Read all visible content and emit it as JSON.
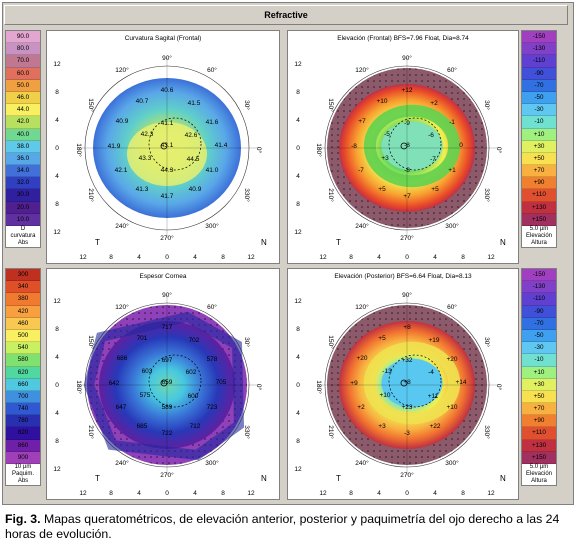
{
  "window_title": "Refractive",
  "caption": {
    "label": "Fig. 3.",
    "text": " Mapas queratométricos, de elevación anterior, posterior y paquimetría del ojo derecho a las 24 horas de evolución."
  },
  "axis": {
    "deg90": "90°",
    "deg120": "120°",
    "deg60": "60°",
    "deg150": "150°",
    "deg30": "30°",
    "deg180": "180°",
    "deg0": "0°",
    "deg210": "210°",
    "deg330": "330°",
    "deg240": "240°",
    "deg300": "300°",
    "deg270": "270°",
    "x_ticks": [
      "12",
      "8",
      "4",
      "0",
      "4",
      "8",
      "12"
    ],
    "y_ticks": [
      "12",
      "8",
      "4",
      "0",
      "4",
      "8",
      "12"
    ],
    "T": "T",
    "N": "N"
  },
  "maps": {
    "sagittal": {
      "title": "Curvatura Sagital (Frontal)",
      "labels": [
        "40.6",
        "40.7",
        "41.5",
        "40.9",
        "42.3",
        "41.1",
        "41.6",
        "42.6",
        "41.9",
        "43.1",
        "41.4",
        "43.3",
        "44.5",
        "42.1",
        "44.3",
        "41.0",
        "41.3",
        "40.9",
        "41.7"
      ]
    },
    "elev_front": {
      "title": "Elevación (Frontal)  BFS=7.96 Float, Dia=8.74",
      "labels": [
        "+12",
        "+10",
        "+2",
        "+7",
        "-5",
        "-9",
        "-1",
        "-6",
        "-8",
        "-8",
        "0",
        "+3",
        "-7",
        "-7",
        "-8",
        "+1",
        "+5",
        "+5",
        "+7"
      ]
    },
    "pachy": {
      "title": "Espesor Cornea",
      "labels": [
        "717",
        "701",
        "702",
        "686",
        "603",
        "697",
        "578",
        "602",
        "642",
        "659",
        "705",
        "575",
        "600",
        "647",
        "589",
        "723",
        "685",
        "712",
        "722"
      ]
    },
    "elev_post": {
      "title": "Elevación (Posterior)  BFS=6.64 Float, Dia=8.13",
      "labels": [
        "+8",
        "+5",
        "+19",
        "+20",
        "-13",
        "+32",
        "+20",
        "-4",
        "+9",
        "+8",
        "+14",
        "+10",
        "+11",
        "+2",
        "+23",
        "+10",
        "+3",
        "+22",
        "-3"
      ]
    }
  },
  "scales": {
    "curvature": {
      "values": [
        "90.0",
        "80.0",
        "70.0",
        "60.0",
        "50.0",
        "46.0",
        "44.0",
        "42.0",
        "40.0",
        "38.0",
        "36.0",
        "34.0",
        "32.0",
        "30.0",
        "20.0",
        "10.0"
      ],
      "foot": [
        "D",
        "curvatura",
        "Abs"
      ],
      "colors": [
        "#e3a6d0",
        "#c893c3",
        "#c07890",
        "#e0705c",
        "#f0a040",
        "#f0d048",
        "#f8f060",
        "#b8e060",
        "#70d890",
        "#60c8e8",
        "#58a8e8",
        "#4070d8",
        "#3040c0",
        "#3020a0",
        "#502090",
        "#6030a0"
      ]
    },
    "elevation_front": {
      "values": [
        "-150",
        "-130",
        "-110",
        "-90",
        "-70",
        "-50",
        "-30",
        "-10",
        "+10",
        "+30",
        "+50",
        "+70",
        "+90",
        "+110",
        "+130",
        "+150"
      ],
      "foot": [
        "5.0 µm",
        "Elevación",
        "Altura"
      ],
      "colors": [
        "#a040c0",
        "#8040c8",
        "#6040d0",
        "#4050d8",
        "#3070e0",
        "#40a0f0",
        "#60c8f0",
        "#70e0d0",
        "#a0f080",
        "#e0f060",
        "#f8e050",
        "#f8b040",
        "#f08030",
        "#e05030",
        "#c03040",
        "#a03060"
      ]
    },
    "pachy": {
      "values": [
        "300",
        "340",
        "380",
        "420",
        "460",
        "500",
        "540",
        "580",
        "620",
        "660",
        "700",
        "740",
        "780",
        "820",
        "860",
        "900"
      ],
      "foot": [
        "10 µm",
        "Paquim.",
        "Abs"
      ],
      "colors": [
        "#c03020",
        "#e05028",
        "#f07a30",
        "#f8a040",
        "#f8c850",
        "#f8f060",
        "#c8f060",
        "#80e070",
        "#50d8a0",
        "#50c8e0",
        "#4090e0",
        "#3058d0",
        "#2830b0",
        "#3010a0",
        "#7020a8",
        "#a040b8"
      ]
    },
    "elevation_post": {
      "values": [
        "-150",
        "-130",
        "-110",
        "-90",
        "-70",
        "-50",
        "-30",
        "-10",
        "+10",
        "+30",
        "+50",
        "+70",
        "+90",
        "+110",
        "+130",
        "+150"
      ],
      "foot": [
        "5.0 µm",
        "Elevación",
        "Altura"
      ],
      "colors": [
        "#a040c0",
        "#8040c8",
        "#6040d0",
        "#4050d8",
        "#3070e0",
        "#40a0f0",
        "#60c8f0",
        "#70e0d0",
        "#a0f080",
        "#e0f060",
        "#f8e050",
        "#f8b040",
        "#f08030",
        "#e05030",
        "#c03040",
        "#a03060"
      ]
    }
  }
}
